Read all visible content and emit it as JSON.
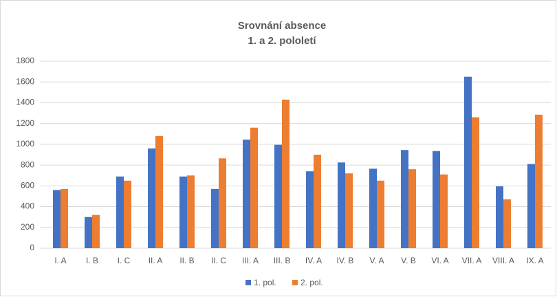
{
  "chart_data": {
    "type": "bar",
    "title": "Srovnání absence",
    "subtitle": "1. a 2. pololetí",
    "categories": [
      "I. A",
      "I. B",
      "I. C",
      "II. A",
      "II. B",
      "II. C",
      "III. A",
      "III. B",
      "IV. A",
      "IV. B",
      "V. A",
      "V. B",
      "VI. A",
      "VII. A",
      "VIII. A",
      "IX. A"
    ],
    "series": [
      {
        "name": "1. pol.",
        "color": "#4472c4",
        "values": [
          560,
          300,
          690,
          960,
          690,
          570,
          1045,
          995,
          740,
          825,
          765,
          945,
          935,
          1650,
          595,
          810
        ]
      },
      {
        "name": "2. pol.",
        "color": "#ed7d31",
        "values": [
          570,
          320,
          650,
          1080,
          700,
          865,
          1160,
          1430,
          900,
          720,
          650,
          760,
          710,
          1260,
          470,
          1285
        ]
      }
    ],
    "ylim": [
      0,
      1800
    ],
    "yticks": [
      0,
      200,
      400,
      600,
      800,
      1000,
      1200,
      1400,
      1600,
      1800
    ],
    "grid": true,
    "legend": "bottom"
  }
}
